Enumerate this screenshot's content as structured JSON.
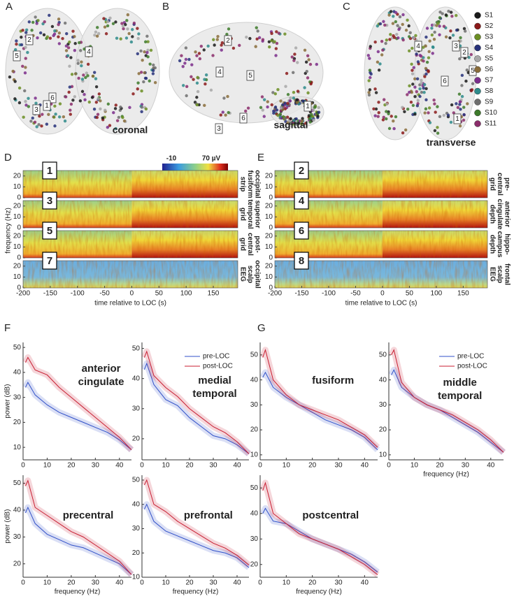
{
  "panel_letters": [
    "A",
    "B",
    "C",
    "D",
    "E",
    "F",
    "G"
  ],
  "brain_views": [
    {
      "label": "coronal",
      "markers": [
        "5",
        "2",
        "4",
        "6",
        "3",
        "1"
      ]
    },
    {
      "label": "sagittal",
      "markers": [
        "2",
        "4",
        "5",
        "6",
        "3",
        "1"
      ]
    },
    {
      "label": "transverse",
      "markers": [
        "4",
        "3",
        "2",
        "5",
        "6",
        "1"
      ]
    }
  ],
  "subjects": [
    {
      "name": "S1",
      "color": "#1a1a1a"
    },
    {
      "name": "S2",
      "color": "#8b1a1a"
    },
    {
      "name": "S3",
      "color": "#6b8e23"
    },
    {
      "name": "S4",
      "color": "#27317a"
    },
    {
      "name": "S5",
      "color": "#a8a8a8"
    },
    {
      "name": "S6",
      "color": "#8a6d3b"
    },
    {
      "name": "S7",
      "color": "#7b2d8b"
    },
    {
      "name": "S8",
      "color": "#2e8b8b"
    },
    {
      "name": "S9",
      "color": "#6e6e6e"
    },
    {
      "name": "S10",
      "color": "#3d7a2a"
    },
    {
      "name": "S11",
      "color": "#8b2d6b"
    }
  ],
  "spectrograms": {
    "colorbar_labels": [
      "-10",
      "70 µV"
    ],
    "xlim": [
      -200,
      195
    ],
    "xticks": [
      -200,
      -150,
      -100,
      -50,
      0,
      50,
      100,
      150
    ],
    "ylim": [
      0,
      25
    ],
    "yticks": [
      0,
      10,
      20
    ],
    "ylabel": "frequency (Hz)",
    "xlabel": "time relative to LOC (s)",
    "strips": [
      {
        "number": "1",
        "label": [
          "occipital",
          "fusiform",
          "strip"
        ],
        "kind": "cortex"
      },
      {
        "number": "2",
        "label": [
          "pre-",
          "central",
          "grid"
        ],
        "kind": "cortex"
      },
      {
        "number": "3",
        "label": [
          "superior",
          "temporal",
          "grid"
        ],
        "kind": "cortex"
      },
      {
        "number": "4",
        "label": [
          "anterior",
          "cingulate",
          "depth"
        ],
        "kind": "cortex"
      },
      {
        "number": "5",
        "label": [
          "post-",
          "central",
          "grid"
        ],
        "kind": "cortex"
      },
      {
        "number": "6",
        "label": [
          "hippo-",
          "campus",
          "depth"
        ],
        "kind": "cortex"
      },
      {
        "number": "7",
        "label": [
          "occipital",
          "scalp",
          "EEG"
        ],
        "kind": "eeg"
      },
      {
        "number": "8",
        "label": [
          "frontal",
          "scalp",
          "EEG"
        ],
        "kind": "eeg"
      }
    ]
  },
  "chart_data": [
    {
      "type": "line",
      "title": [
        "anterior",
        "cingulate"
      ],
      "ylabel": "power (dB)",
      "x": [
        1,
        2,
        5,
        10,
        15,
        20,
        25,
        30,
        35,
        40,
        45
      ],
      "xlim": [
        0,
        45
      ],
      "xticks": [
        0,
        10,
        20,
        30,
        40
      ],
      "ylim": [
        5,
        52
      ],
      "yticks": [
        10,
        20,
        30,
        40,
        50
      ],
      "series": [
        {
          "color": "#3050c8",
          "values": [
            34,
            36,
            31,
            27,
            24,
            22,
            20,
            18,
            16,
            13,
            9
          ]
        },
        {
          "color": "#c81e32",
          "values": [
            44,
            46,
            41,
            39,
            34,
            30,
            26,
            22,
            18,
            14,
            9
          ]
        }
      ]
    },
    {
      "type": "line",
      "title": [
        "medial",
        "temporal"
      ],
      "legend": "upper right",
      "x": [
        1,
        2,
        5,
        10,
        15,
        20,
        25,
        30,
        35,
        40,
        45
      ],
      "xlim": [
        0,
        45
      ],
      "xticks": [
        0,
        10,
        20,
        30,
        40
      ],
      "ylim": [
        13,
        52
      ],
      "yticks": [
        20,
        30,
        40,
        50
      ],
      "series": [
        {
          "name": "pre-LOC",
          "color": "#3050c8",
          "values": [
            43,
            45,
            38,
            33,
            31,
            27,
            24,
            21,
            20,
            18,
            15
          ]
        },
        {
          "name": "post-LOC",
          "color": "#c81e32",
          "values": [
            47,
            49,
            41,
            37,
            34,
            30,
            27,
            24,
            22,
            19,
            15
          ]
        }
      ]
    },
    {
      "type": "line",
      "title": [
        "fusiform"
      ],
      "x": [
        1,
        2,
        5,
        10,
        15,
        20,
        25,
        30,
        35,
        40,
        45
      ],
      "xlim": [
        0,
        45
      ],
      "xticks": [
        0,
        10,
        20,
        30,
        40
      ],
      "ylim": [
        8,
        55
      ],
      "yticks": [
        10,
        20,
        30,
        40,
        50
      ],
      "series": [
        {
          "color": "#3050c8",
          "values": [
            41,
            43,
            37,
            33,
            30,
            27,
            24,
            22,
            20,
            17,
            12
          ]
        },
        {
          "color": "#c81e32",
          "values": [
            49,
            52,
            40,
            34,
            30,
            28,
            26,
            24,
            21,
            18,
            13
          ]
        }
      ]
    },
    {
      "type": "line",
      "title": [
        "middle",
        "temporal"
      ],
      "legend": "upper right",
      "xlabel": "frequency (Hz)",
      "x": [
        1,
        2,
        5,
        10,
        15,
        20,
        25,
        30,
        35,
        40,
        45
      ],
      "xlim": [
        0,
        45
      ],
      "xticks": [
        0,
        10,
        20,
        30,
        40
      ],
      "ylim": [
        8,
        55
      ],
      "yticks": [
        10,
        20,
        30,
        40,
        50
      ],
      "series": [
        {
          "name": "pre-LOC",
          "color": "#3050c8",
          "values": [
            42,
            44,
            37,
            33,
            30,
            28,
            25,
            22,
            19,
            15,
            11
          ]
        },
        {
          "name": "post-LOC",
          "color": "#c81e32",
          "values": [
            50,
            52,
            39,
            33,
            30,
            28,
            26,
            23,
            20,
            16,
            11
          ]
        }
      ]
    },
    {
      "type": "line",
      "title": [
        "precentral"
      ],
      "ylabel": "power (dB)",
      "xlabel": "frequency (Hz)",
      "x": [
        1,
        2,
        5,
        10,
        15,
        20,
        25,
        30,
        35,
        40,
        45
      ],
      "xlim": [
        0,
        45
      ],
      "xticks": [
        0,
        10,
        20,
        30,
        40
      ],
      "ylim": [
        15,
        53
      ],
      "yticks": [
        20,
        30,
        40,
        50
      ],
      "series": [
        {
          "color": "#3050c8",
          "values": [
            39,
            41,
            35,
            31,
            29,
            27,
            26,
            24,
            22,
            20,
            16
          ]
        },
        {
          "color": "#c81e32",
          "values": [
            49,
            51,
            41,
            38,
            35,
            32,
            30,
            27,
            24,
            21,
            16
          ]
        }
      ]
    },
    {
      "type": "line",
      "title": [
        "prefrontal"
      ],
      "xlabel": "frequency (Hz)",
      "x": [
        1,
        2,
        5,
        10,
        15,
        20,
        25,
        30,
        35,
        40,
        45
      ],
      "xlim": [
        0,
        45
      ],
      "xticks": [
        0,
        10,
        20,
        30,
        40
      ],
      "ylim": [
        10,
        52
      ],
      "yticks": [
        10,
        20,
        30,
        40,
        50
      ],
      "series": [
        {
          "color": "#3050c8",
          "values": [
            38,
            40,
            33,
            29,
            27,
            25,
            23,
            21,
            20,
            18,
            14
          ]
        },
        {
          "color": "#c81e32",
          "values": [
            48,
            50,
            40,
            37,
            33,
            30,
            27,
            24,
            22,
            19,
            15
          ]
        }
      ]
    },
    {
      "type": "line",
      "title": [
        "postcentral"
      ],
      "xlabel": "frequency (Hz)",
      "x": [
        1,
        2,
        5,
        10,
        15,
        20,
        25,
        30,
        35,
        40,
        45
      ],
      "xlim": [
        0,
        45
      ],
      "xticks": [
        0,
        10,
        20,
        30,
        40
      ],
      "ylim": [
        15,
        55
      ],
      "yticks": [
        20,
        30,
        40,
        50
      ],
      "series": [
        {
          "color": "#3050c8",
          "values": [
            40,
            42,
            37,
            36,
            33,
            30,
            28,
            26,
            24,
            21,
            17
          ]
        },
        {
          "color": "#c81e32",
          "values": [
            49,
            52,
            40,
            36,
            32,
            30,
            28,
            26,
            23,
            20,
            16
          ]
        }
      ]
    }
  ]
}
